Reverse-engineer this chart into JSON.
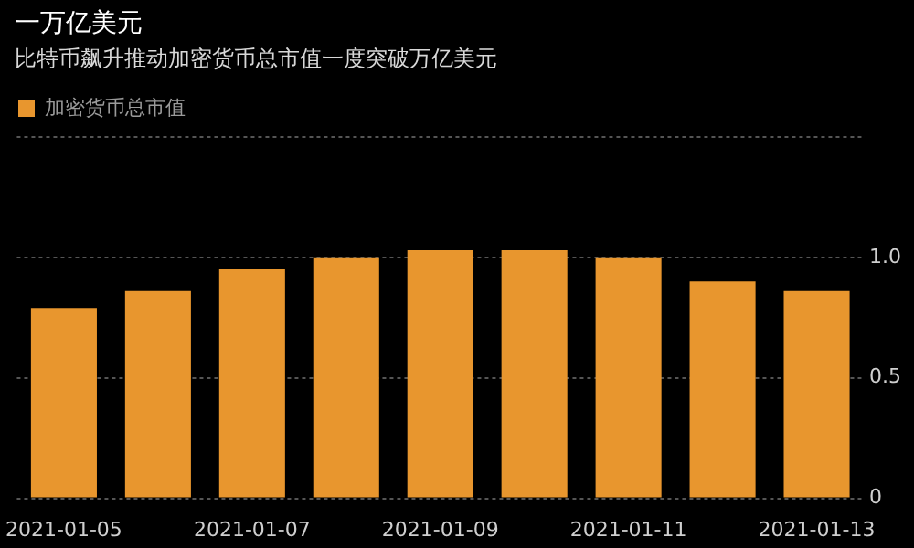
{
  "chart_data": {
    "type": "bar",
    "title": "一万亿美元",
    "subtitle": "比特币飙升推动加密货币总市值一度突破万亿美元",
    "categories": [
      "2021-01-05",
      null,
      "2021-01-07",
      null,
      "2021-01-09",
      null,
      "2021-01-11",
      null,
      "2021-01-13"
    ],
    "series": [
      {
        "name": "加密货币总市值",
        "color": "#e8962e",
        "values": [
          0.79,
          0.86,
          0.95,
          1.0,
          1.03,
          1.03,
          1.0,
          0.9,
          0.86
        ]
      }
    ],
    "ylim": [
      0,
      1.5
    ],
    "yticks": [
      0,
      0.5,
      {
        "value": 1,
        "label": "1.0"
      },
      {
        "value": 1.5,
        "label": null
      }
    ],
    "grid": "y",
    "legend": "top left"
  }
}
